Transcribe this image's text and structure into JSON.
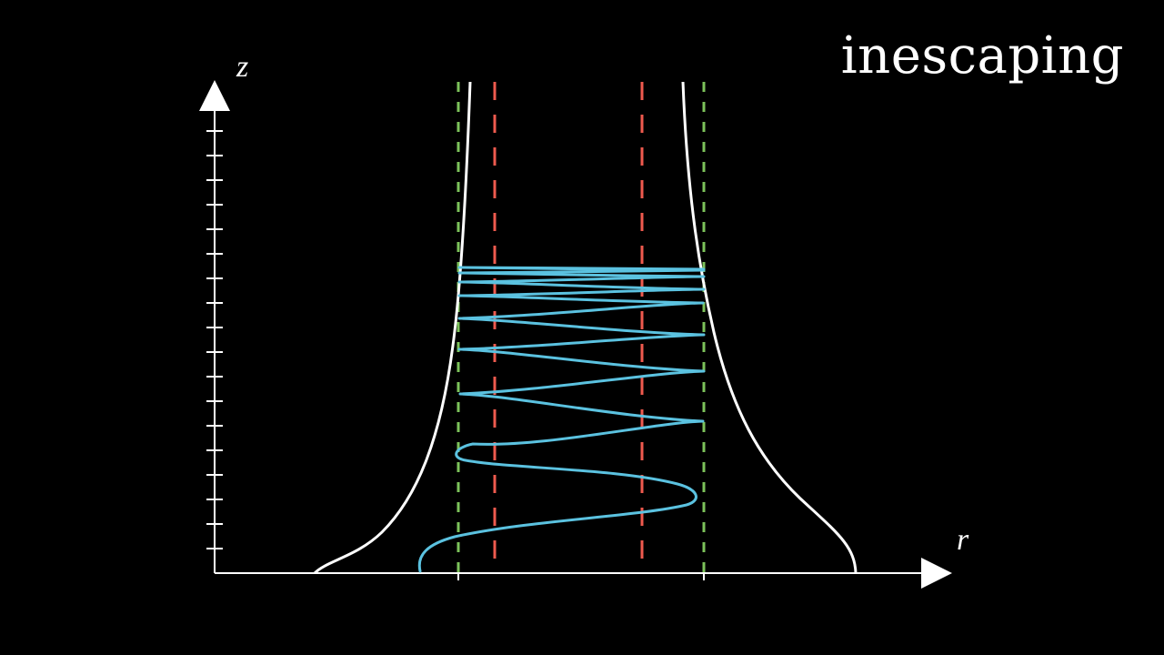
{
  "title": "inescaping",
  "axes": {
    "vertical_label": "z",
    "horizontal_label": "r"
  },
  "colors": {
    "background": "#000000",
    "axis": "#ffffff",
    "boundary_curve": "#ffffff",
    "trajectory": "#5bc2e0",
    "outer_dashed": "#7cc25a",
    "inner_dashed": "#ee5a4e"
  }
}
